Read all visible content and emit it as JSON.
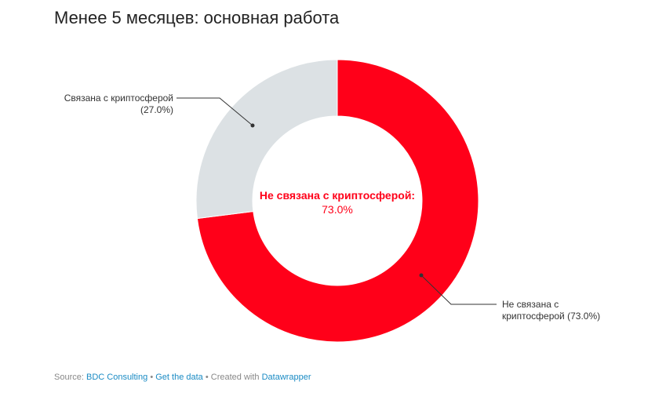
{
  "title": "Менее 5 месяцев: основная работа",
  "chart_data": {
    "type": "pie",
    "variant": "donut",
    "title": "Менее 5 месяцев: основная работа",
    "slices": [
      {
        "label": "Не связана с криптосферой",
        "value": 73.0,
        "value_label": "(73.0%)",
        "color": "#ff0019"
      },
      {
        "label": "Связана с криптосферой",
        "value": 27.0,
        "value_label": "(27.0%)",
        "color": "#dce1e4"
      }
    ],
    "center_label": {
      "title": "Не связана с криптосферой:",
      "value": "73.0%"
    }
  },
  "labels": {
    "left_line1": "Связана с криптосферой",
    "left_line2": "(27.0%)",
    "right_line1": "Не связана с",
    "right_line2": "криптосферой",
    "right_pct": "(73.0%)"
  },
  "footer": {
    "source_prefix": "Source:",
    "source": "BDC Consulting",
    "sep1": "•",
    "get_data": "Get the data",
    "sep2": "• Created with",
    "tool": "Datawrapper"
  }
}
